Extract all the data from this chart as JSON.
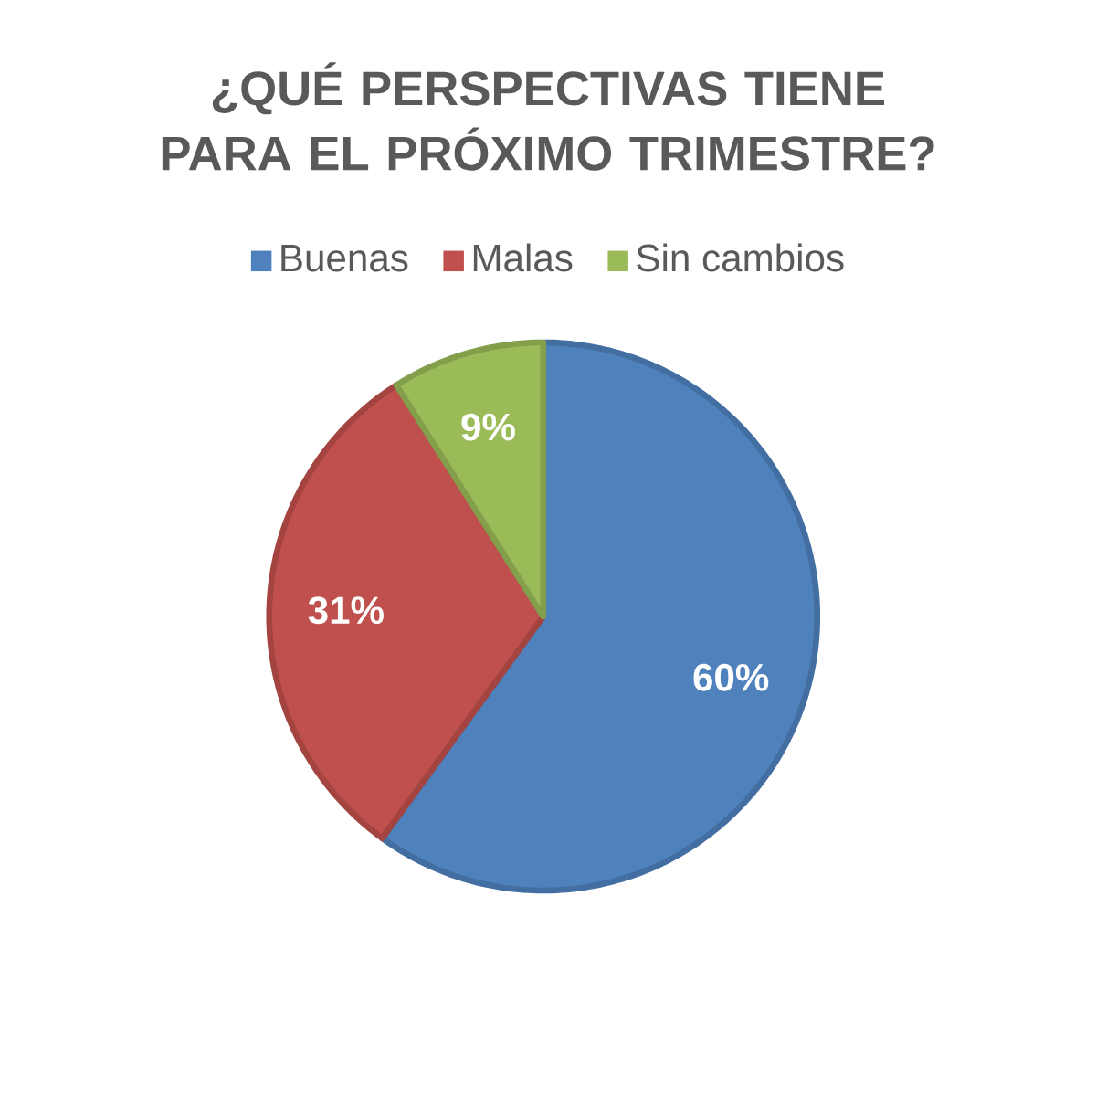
{
  "chart_data": {
    "type": "pie",
    "title": "¿QUÉ PERSPECTIVAS TIENE PARA EL PRÓXIMO TRIMESTRE?",
    "categories": [
      "Buenas",
      "Malas",
      "Sin cambios"
    ],
    "values": [
      60,
      31,
      9
    ],
    "colors": [
      "#4f81bd",
      "#c0504d",
      "#9bbb59"
    ],
    "value_labels": [
      "60%",
      "31%",
      "9%"
    ],
    "legend": "top"
  }
}
